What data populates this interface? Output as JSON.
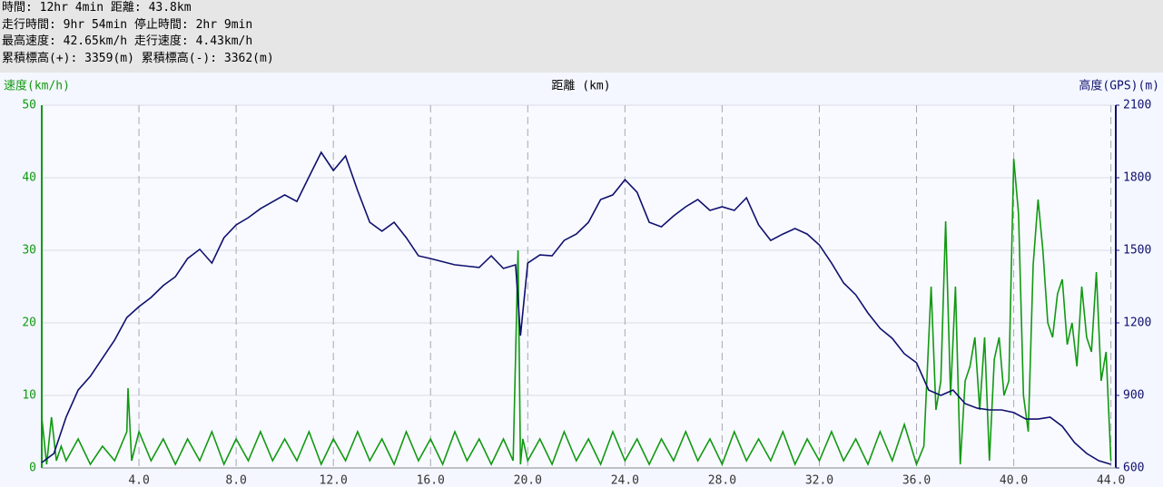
{
  "summary": [
    "時間: 12hr 4min 距離: 43.8km",
    "走行時間: 9hr 54min 停止時間: 2hr 9min",
    "最高速度: 42.65km/h 走行速度: 4.43km/h",
    "累積標高(+): 3359(m) 累積標高(-): 3362(m)"
  ],
  "chart_data": {
    "type": "line",
    "y_label": "速度(km/h)",
    "x_label": "距離 (km)",
    "y2_label": "高度(GPS)(m)",
    "xlim": [
      0,
      44.2
    ],
    "ylim": [
      0,
      50
    ],
    "y2lim": [
      600,
      2100
    ],
    "xticks": [
      {
        "value": 4,
        "label": "4.0"
      },
      {
        "value": 8,
        "label": "8.0"
      },
      {
        "value": 12,
        "label": "12.0"
      },
      {
        "value": 16,
        "label": "16.0"
      },
      {
        "value": 20,
        "label": "20.0"
      },
      {
        "value": 24,
        "label": "24.0"
      },
      {
        "value": 28,
        "label": "28.0"
      },
      {
        "value": 32,
        "label": "32.0"
      },
      {
        "value": 36,
        "label": "36.0"
      },
      {
        "value": 40,
        "label": "40.0"
      },
      {
        "value": 44,
        "label": "44.0"
      }
    ],
    "yticks": [
      0,
      10,
      20,
      30,
      40,
      50
    ],
    "y2ticks": [
      600,
      900,
      1200,
      1500,
      1800,
      2100
    ],
    "y_color": "#119911",
    "y2_color": "#10106e",
    "grid": true,
    "series": [
      {
        "name": "速度",
        "color": "#119911",
        "axis": "y",
        "x": [
          0,
          0.2,
          0.4,
          0.6,
          0.8,
          1.0,
          1.5,
          2.0,
          2.5,
          3.0,
          3.5,
          3.55,
          3.7,
          4.0,
          4.5,
          5,
          5.5,
          6,
          6.5,
          7,
          7.5,
          8,
          8.5,
          9,
          9.5,
          10,
          10.5,
          11,
          11.5,
          12,
          12.5,
          13,
          13.5,
          14,
          14.5,
          15,
          15.5,
          16,
          16.5,
          17,
          17.5,
          18,
          18.5,
          19,
          19.4,
          19.6,
          19.7,
          19.8,
          20,
          20.5,
          21,
          21.5,
          22,
          22.5,
          23,
          23.5,
          24,
          24.5,
          25,
          25.5,
          26,
          26.5,
          27,
          27.5,
          28,
          28.5,
          29,
          29.5,
          30,
          30.5,
          31,
          31.5,
          32,
          32.5,
          33,
          33.5,
          34,
          34.5,
          35,
          35.5,
          36,
          36.3,
          36.6,
          36.8,
          37.0,
          37.2,
          37.4,
          37.6,
          37.8,
          38.0,
          38.2,
          38.4,
          38.6,
          38.8,
          39.0,
          39.2,
          39.4,
          39.6,
          39.8,
          40.0,
          40.2,
          40.4,
          40.6,
          40.8,
          41.0,
          41.2,
          41.4,
          41.6,
          41.8,
          42.0,
          42.2,
          42.4,
          42.6,
          42.8,
          43.0,
          43.2,
          43.4,
          43.6,
          43.8,
          44.0
        ],
        "values": [
          7,
          0.5,
          7,
          1,
          3,
          1,
          4,
          0.5,
          3,
          1,
          5,
          11,
          1,
          5,
          1,
          4,
          0.5,
          4,
          1,
          5,
          0.5,
          4,
          1,
          5,
          1,
          4,
          1,
          5,
          0.5,
          4,
          1,
          5,
          1,
          4,
          0.5,
          5,
          1,
          4,
          0.5,
          5,
          1,
          4,
          0.5,
          4,
          1,
          30,
          0.5,
          4,
          1,
          4,
          0.5,
          5,
          1,
          4,
          0.5,
          5,
          1,
          4,
          0.5,
          4,
          1,
          5,
          1,
          4,
          0.5,
          5,
          1,
          4,
          1,
          5,
          0.5,
          4,
          1,
          5,
          1,
          4,
          0.5,
          5,
          1,
          6,
          0.5,
          3,
          25,
          8,
          12,
          34,
          10,
          25,
          0.5,
          12,
          14,
          18,
          8,
          18,
          1,
          15,
          18,
          10,
          12,
          42.6,
          35,
          10,
          5,
          28,
          37,
          30,
          20,
          18,
          24,
          26,
          17,
          20,
          14,
          25,
          18,
          16,
          27,
          12,
          16,
          1
        ]
      },
      {
        "name": "高度",
        "color": "#10106e",
        "axis": "y2",
        "x": [
          0,
          0.5,
          1,
          1.5,
          2,
          3,
          3.5,
          4,
          4.5,
          5,
          5.5,
          6,
          6.5,
          7,
          7.5,
          8,
          8.5,
          9,
          10,
          10.5,
          11,
          11.5,
          12,
          12.5,
          13,
          13.5,
          14,
          14.5,
          15,
          15.5,
          16,
          17,
          18,
          18.5,
          19,
          19.5,
          19.7,
          20,
          20.5,
          21,
          21.5,
          22,
          22.5,
          23,
          23.5,
          24,
          24.5,
          25,
          25.5,
          26,
          26.5,
          27,
          27.5,
          28,
          28.5,
          29,
          29.5,
          30,
          30.5,
          31,
          31.5,
          32,
          32.5,
          33,
          33.5,
          34,
          34.5,
          35,
          35.5,
          36,
          36.5,
          37,
          37.5,
          38,
          38.5,
          39,
          39.5,
          40,
          40.5,
          41,
          41.5,
          42,
          42.5,
          43,
          43.5,
          44
        ],
        "values": [
          622,
          660,
          810,
          922,
          979,
          1129,
          1222,
          1267,
          1305,
          1354,
          1391,
          1466,
          1504,
          1447,
          1552,
          1605,
          1635,
          1672,
          1729,
          1702,
          1804,
          1905,
          1830,
          1890,
          1747,
          1616,
          1579,
          1616,
          1552,
          1477,
          1466,
          1440,
          1429,
          1477,
          1425,
          1440,
          1147,
          1447,
          1481,
          1477,
          1541,
          1567,
          1616,
          1710,
          1729,
          1792,
          1740,
          1616,
          1597,
          1642,
          1680,
          1710,
          1665,
          1680,
          1665,
          1717,
          1605,
          1541,
          1567,
          1590,
          1567,
          1522,
          1447,
          1365,
          1316,
          1241,
          1177,
          1136,
          1072,
          1035,
          922,
          900,
          922,
          866,
          847,
          840,
          840,
          829,
          802,
          802,
          810,
          772,
          705,
          660,
          630,
          615
        ]
      }
    ]
  }
}
